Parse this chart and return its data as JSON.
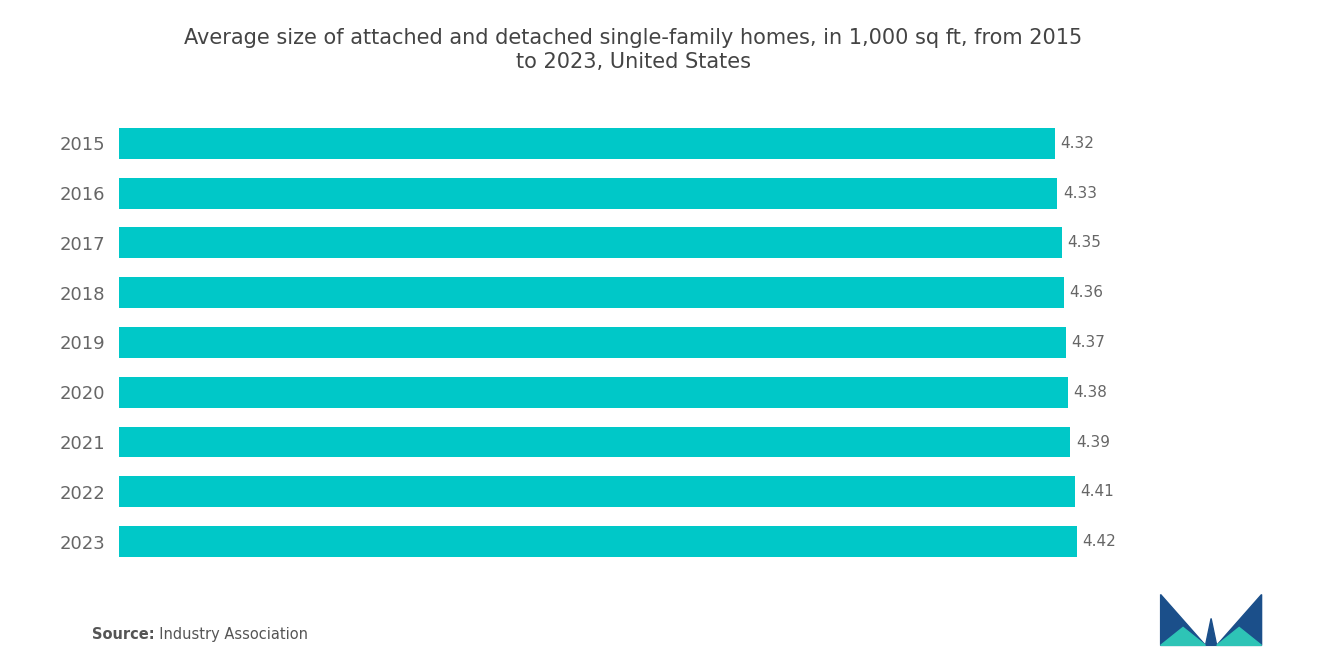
{
  "title": "Average size of attached and detached single-family homes, in 1,000 sq ft, from 2015\nto 2023, United States",
  "years": [
    "2015",
    "2016",
    "2017",
    "2018",
    "2019",
    "2020",
    "2021",
    "2022",
    "2023"
  ],
  "values": [
    4.32,
    4.33,
    4.35,
    4.36,
    4.37,
    4.38,
    4.39,
    4.41,
    4.42
  ],
  "bar_color": "#00C8C8",
  "background_color": "#ffffff",
  "source_bold": "Source:",
  "source_regular": "  Industry Association",
  "title_fontsize": 15,
  "label_fontsize": 11,
  "tick_fontsize": 13,
  "source_fontsize": 10.5,
  "xlim": [
    0,
    4.75
  ],
  "bar_height": 0.62
}
